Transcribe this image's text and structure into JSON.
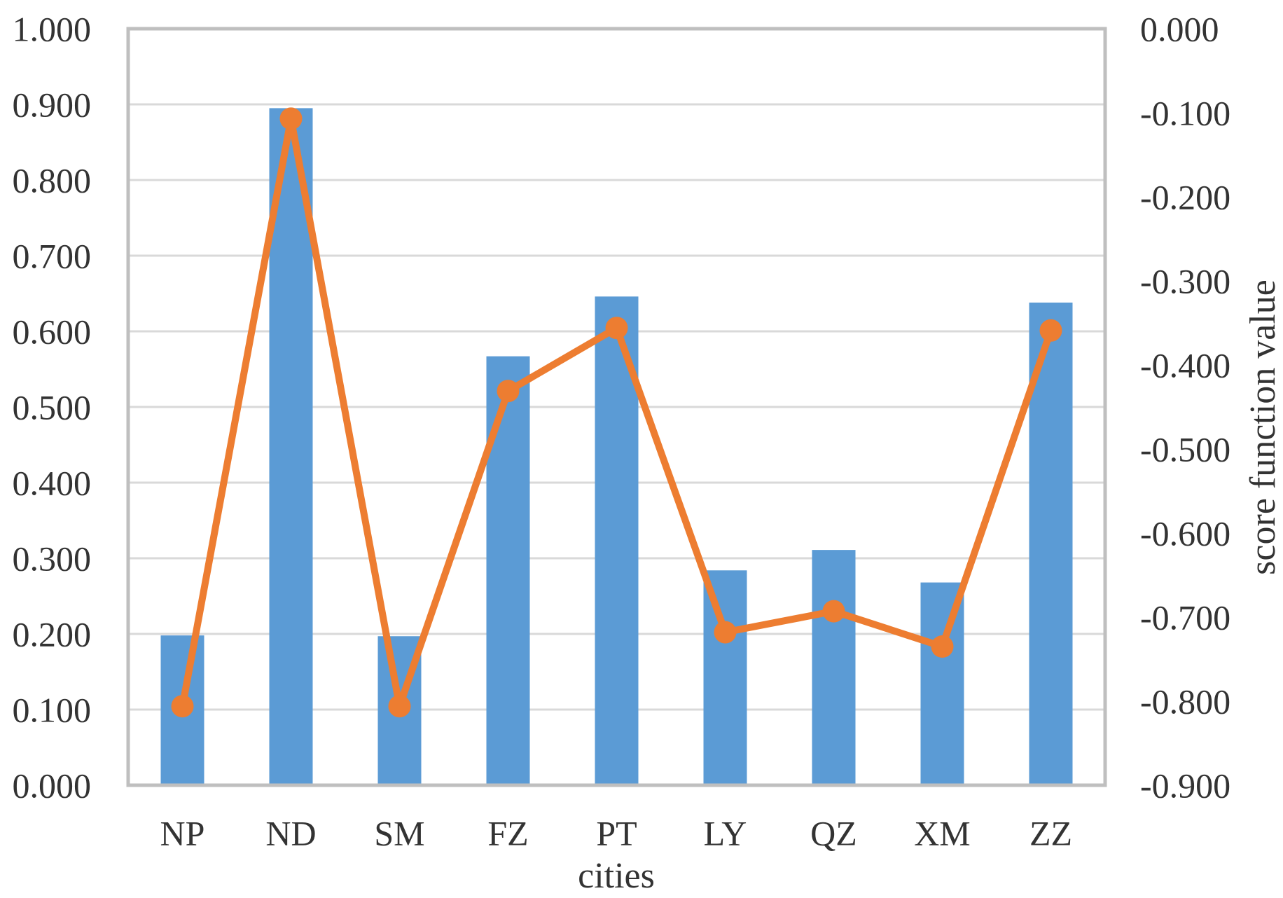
{
  "chart_data": {
    "type": "bar",
    "subtype": "combo-bar-line-dual-axis",
    "title": "",
    "xlabel": "cities",
    "categories": [
      "NP",
      "ND",
      "SM",
      "FZ",
      "PT",
      "LY",
      "QZ",
      "XM",
      "ZZ"
    ],
    "series": [
      {
        "id": "bars",
        "type": "bar",
        "axis": "left",
        "values": [
          0.198,
          0.895,
          0.197,
          0.567,
          0.646,
          0.284,
          0.311,
          0.268,
          0.638
        ]
      },
      {
        "id": "line",
        "type": "line",
        "axis": "right",
        "values": [
          -0.806,
          -0.107,
          -0.806,
          -0.431,
          -0.356,
          -0.718,
          -0.693,
          -0.735,
          -0.359
        ]
      }
    ],
    "left_axis": {
      "min": 0,
      "max": 1,
      "tick_labels": [
        "0.000",
        "0.100",
        "0.200",
        "0.300",
        "0.400",
        "0.500",
        "0.600",
        "0.700",
        "0.800",
        "0.900",
        "1.000"
      ]
    },
    "right_axis": {
      "title": "score function value",
      "min": -0.9,
      "max": 0,
      "tick_labels": [
        "0.000",
        "-0.100",
        "-0.200",
        "-0.300",
        "-0.400",
        "-0.500",
        "-0.600",
        "-0.700",
        "-0.800",
        "-0.900"
      ]
    },
    "grid": true,
    "legend": false
  },
  "colors": {
    "bar": "#5B9BD5",
    "line": "#ED7D31",
    "gridline": "#D9D9D9",
    "plot_border": "#BFBFBF",
    "text": "#333333",
    "background": "#FFFFFF"
  }
}
